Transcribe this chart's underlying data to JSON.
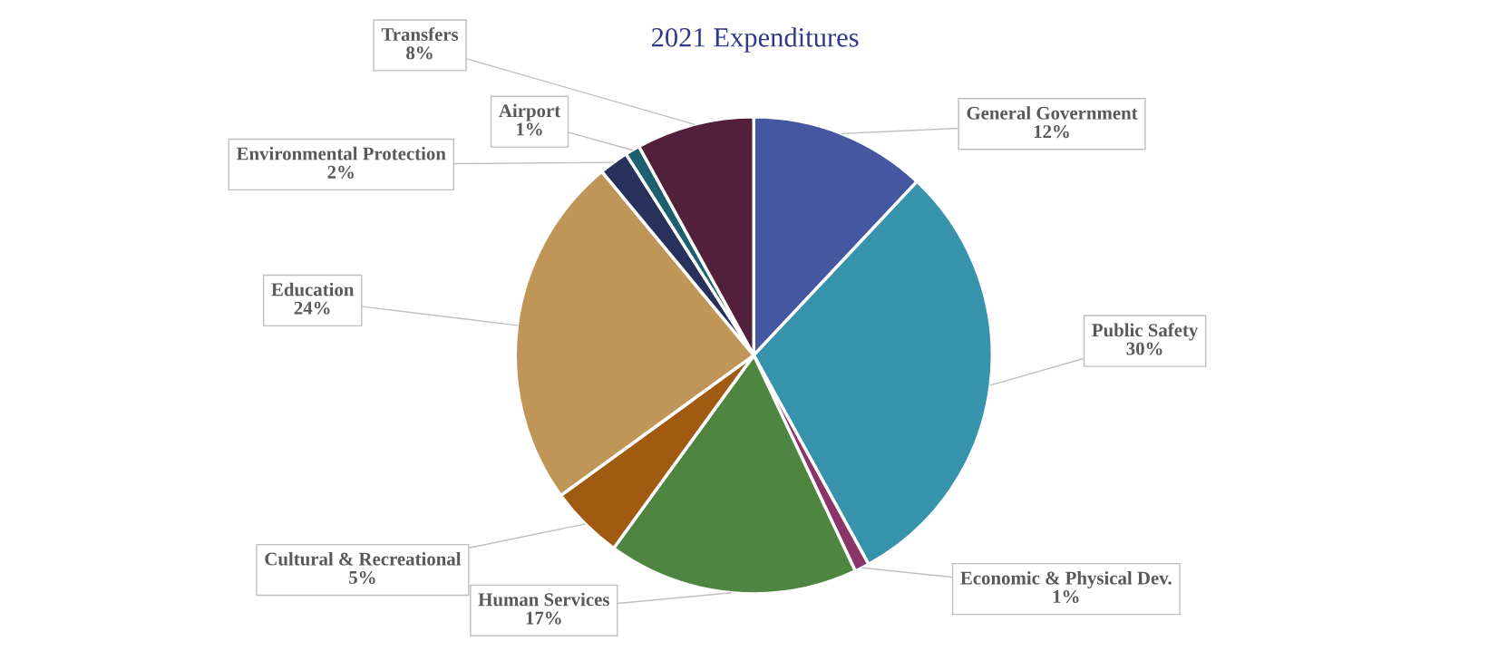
{
  "chart_data": {
    "type": "pie",
    "title": "2021 Expenditures",
    "categories": [
      "General Government",
      "Public Safety",
      "Economic & Physical Dev.",
      "Human Services",
      "Cultural & Recreational",
      "Education",
      "Environmental Protection",
      "Airport",
      "Transfers"
    ],
    "values": [
      12,
      30,
      1,
      17,
      5,
      24,
      2,
      1,
      8
    ],
    "value_labels": [
      "12%",
      "30%",
      "1%",
      "17%",
      "5%",
      "24%",
      "2%",
      "1%",
      "8%"
    ],
    "colors": [
      "#4557a0",
      "#3792ab",
      "#8a3468",
      "#4e8541",
      "#a05a12",
      "#c09658",
      "#27315c",
      "#1c5f6e",
      "#53203b"
    ],
    "legend": false
  }
}
